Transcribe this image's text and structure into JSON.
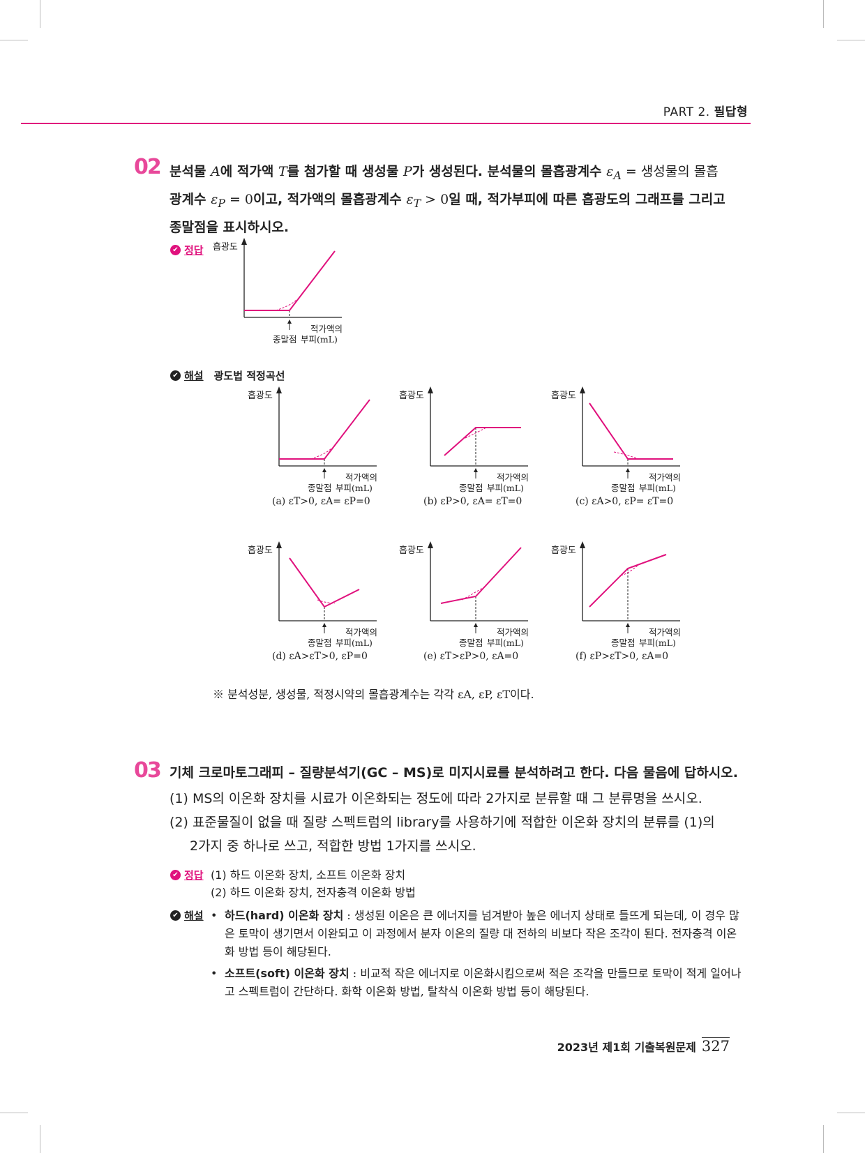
{
  "header": {
    "part": "PART 2.",
    "section": "필답형"
  },
  "q2": {
    "number": "02",
    "line1": [
      "분석물 ",
      "A",
      "에 적가액 ",
      "T",
      "를 첨가할 때 생성물 ",
      "P",
      "가 생성된다. 분석물의 몰흡광계수 ",
      "ε",
      "A",
      " = 생성물의 몰흡"
    ],
    "line2": [
      "광계수 ",
      "ε",
      "P",
      " = 0",
      "이고, 적가액의 몰흡광계수 ",
      "ε",
      "T",
      " > 0",
      "일 때, 적가부피에 따른 흡광도의 그래프를 그리고"
    ],
    "line3": "종말점을 표시하시오.",
    "answer_tag": "정답",
    "explain_tag": "해설",
    "explain_title": "광도법 적정곡선",
    "graph_ylabel": "흡광도",
    "graph_endpoint": "종말점",
    "graph_xlabel_top": "적가액의",
    "graph_xlabel_bottom": "부피(mL)",
    "captions": [
      "(a) εT>0, εA= εP=0",
      "(b) εP>0, εA= εT=0",
      "(c) εA>0, εP= εT=0",
      "(d) εA>εT>0, εP=0",
      "(e) εT>εP>0, εA=0",
      "(f) εP>εT>0, εA=0"
    ],
    "note": "※ 분석성분, 생성물, 적정시약의 몰흡광계수는 각각 εA, εP, εT이다.",
    "line_color": "#e0117d"
  },
  "q3": {
    "number": "03",
    "line1": "기체 크로마토그래피 – 질량분석기(GC – MS)로 미지시료를 분석하려고 한다. 다음 물음에 답하시오.",
    "sub1": "(1) MS의 이온화 장치를 시료가 이온화되는 정도에 따라 2가지로 분류할 때 그 분류명을 쓰시오.",
    "sub2a": "(2) 표준물질이 없을 때 질량 스펙트럼의 library를 사용하기에 적합한 이온화 장치의 분류를 (1)의",
    "sub2b": "2가지 중 하나로 쓰고, 적합한 방법 1가지를 쓰시오.",
    "answer_tag": "정답",
    "answer1": "(1) 하드 이온화 장치, 소프트 이온화 장치",
    "answer2": "(2) 하드 이온화 장치, 전자충격 이온화 방법",
    "explain_tag": "해설",
    "bullet1_term": "하드(hard) 이온화 장치",
    "bullet1_body": " : 생성된 이온은 큰 에너지를 넘겨받아 높은 에너지 상태로 들뜨게 되는데, 이 경우 많은 토막이 생기면서 이완되고 이 과정에서 분자 이온의 질량 대 전하의 비보다 작은 조각이 된다. 전자충격 이온화 방법 등이 해당된다.",
    "bullet2_term": "소프트(soft) 이온화 장치",
    "bullet2_body": " : 비교적 작은 에너지로 이온화시킴으로써 적은 조각을 만들므로 토막이 적게 일어나고 스펙트럼이 간단하다. 화학 이온화 방법, 탈착식 이온화 방법 등이 해당된다."
  },
  "footer": {
    "title": "2023년 제1회 기출복원문제",
    "page": "327"
  }
}
